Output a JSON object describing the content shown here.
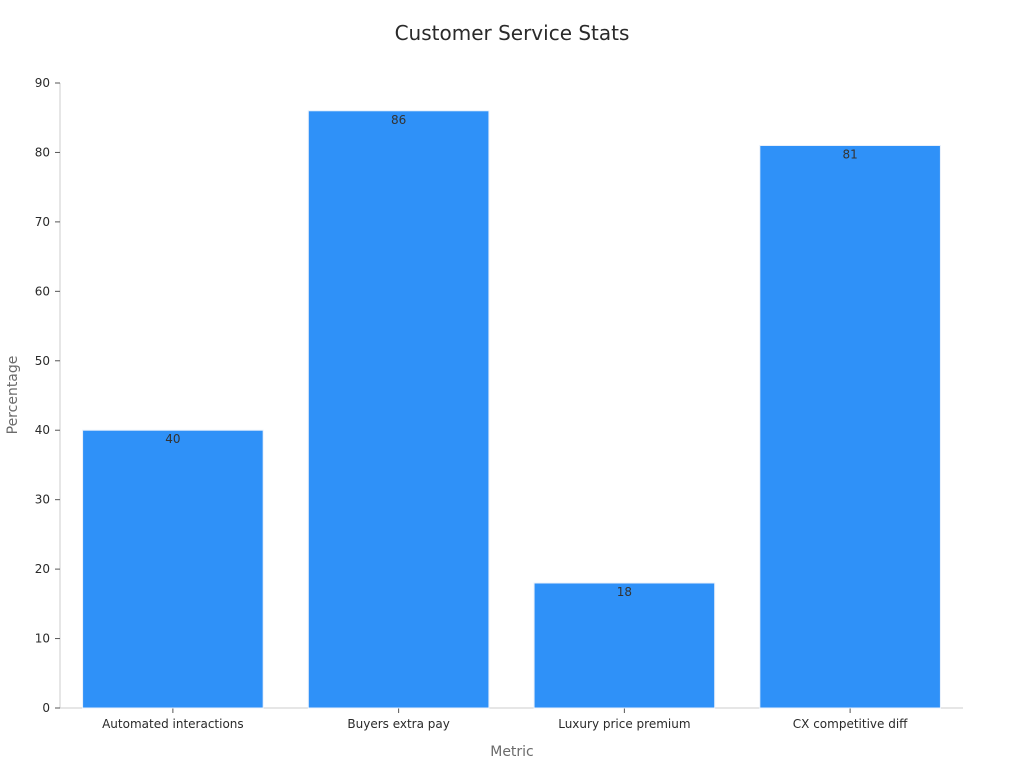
{
  "chart_data": {
    "type": "bar",
    "title": "Customer Service Stats",
    "xlabel": "Metric",
    "ylabel": "Percentage",
    "categories": [
      "Automated interactions",
      "Buyers extra pay",
      "Luxury price premium",
      "CX competitive diff"
    ],
    "values": [
      40,
      86,
      18,
      81
    ],
    "data_labels": [
      "40",
      "86",
      "18",
      "81"
    ],
    "ylim": [
      0,
      90
    ],
    "yticks": [
      0,
      10,
      20,
      30,
      40,
      50,
      60,
      70,
      80,
      90
    ],
    "ytick_labels": [
      "0",
      "10",
      "20",
      "30",
      "40",
      "50",
      "60",
      "70",
      "80",
      "90"
    ],
    "grid": false,
    "legend": "none",
    "colors": {
      "bar": "#2f91f8"
    }
  }
}
